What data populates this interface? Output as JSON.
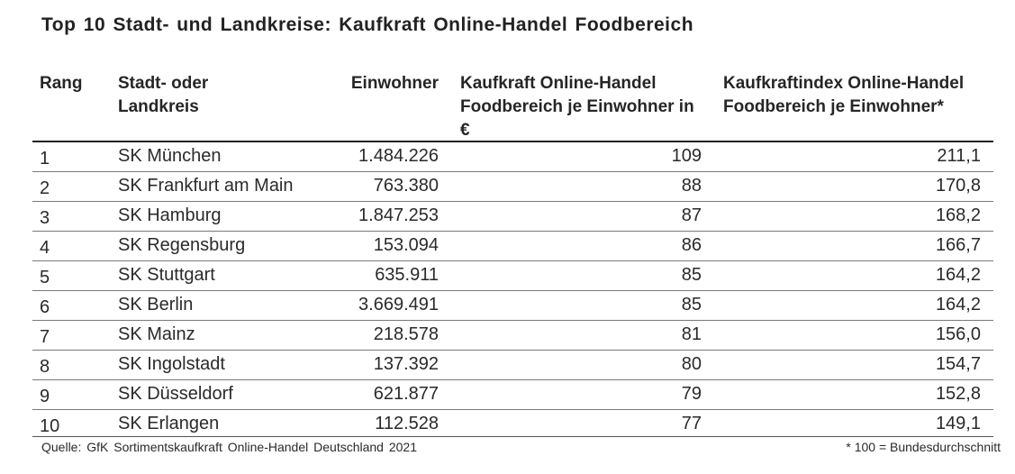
{
  "title": "Top 10 Stadt- und Landkreise:  Kaufkraft  Online-Handel  Foodbereich",
  "headers": {
    "rang": "Rang",
    "kreis": "Stadt- oder Landkreis",
    "einwohner": "Einwohner",
    "kaufkraft": "Kaufkraft Online-Handel Foodbereich je Einwohner in €",
    "index": "Kaufkraftindex Online-Handel Foodbereich je Einwohner*"
  },
  "rows": [
    {
      "rang": "1",
      "kreis": "SK München",
      "einwohner": "1.484.226",
      "kaufkraft": "109",
      "index": "211,1"
    },
    {
      "rang": "2",
      "kreis": "SK Frankfurt am Main",
      "einwohner": "763.380",
      "kaufkraft": "88",
      "index": "170,8"
    },
    {
      "rang": "3",
      "kreis": "SK Hamburg",
      "einwohner": "1.847.253",
      "kaufkraft": "87",
      "index": "168,2"
    },
    {
      "rang": "4",
      "kreis": "SK Regensburg",
      "einwohner": "153.094",
      "kaufkraft": "86",
      "index": "166,7"
    },
    {
      "rang": "5",
      "kreis": "SK Stuttgart",
      "einwohner": "635.911",
      "kaufkraft": "85",
      "index": "164,2"
    },
    {
      "rang": "6",
      "kreis": "SK Berlin",
      "einwohner": "3.669.491",
      "kaufkraft": "85",
      "index": "164,2"
    },
    {
      "rang": "7",
      "kreis": "SK Mainz",
      "einwohner": "218.578",
      "kaufkraft": "81",
      "index": "156,0"
    },
    {
      "rang": "8",
      "kreis": "SK Ingolstadt",
      "einwohner": "137.392",
      "kaufkraft": "80",
      "index": "154,7"
    },
    {
      "rang": "9",
      "kreis": "SK Düsseldorf",
      "einwohner": "621.877",
      "kaufkraft": "79",
      "index": "152,8"
    },
    {
      "rang": "10",
      "kreis": "SK Erlangen",
      "einwohner": "112.528",
      "kaufkraft": "77",
      "index": "149,1"
    }
  ],
  "source": "Quelle:  GfK Sortimentskaufkraft  Online-Handel  Deutschland  2021",
  "footnote": "* 100 = Bundesdurchschnitt",
  "chart_data": {
    "type": "table",
    "title": "Top 10 Stadt- und Landkreise:  Kaufkraft  Online-Handel  Foodbereich",
    "columns": [
      "Rang",
      "Stadt- oder Landkreis",
      "Einwohner",
      "Kaufkraft Online-Handel Foodbereich je Einwohner in €",
      "Kaufkraftindex Online-Handel Foodbereich je Einwohner*"
    ],
    "rows": [
      [
        1,
        "SK München",
        1484226,
        109,
        211.1
      ],
      [
        2,
        "SK Frankfurt am Main",
        763380,
        88,
        170.8
      ],
      [
        3,
        "SK Hamburg",
        1847253,
        87,
        168.2
      ],
      [
        4,
        "SK Regensburg",
        153094,
        86,
        166.7
      ],
      [
        5,
        "SK Stuttgart",
        635911,
        85,
        164.2
      ],
      [
        6,
        "SK Berlin",
        3669491,
        85,
        164.2
      ],
      [
        7,
        "SK Mainz",
        218578,
        81,
        156.0
      ],
      [
        8,
        "SK Ingolstadt",
        137392,
        80,
        154.7
      ],
      [
        9,
        "SK Düsseldorf",
        621877,
        79,
        152.8
      ],
      [
        10,
        "SK Erlangen",
        112528,
        77,
        149.1
      ]
    ]
  }
}
